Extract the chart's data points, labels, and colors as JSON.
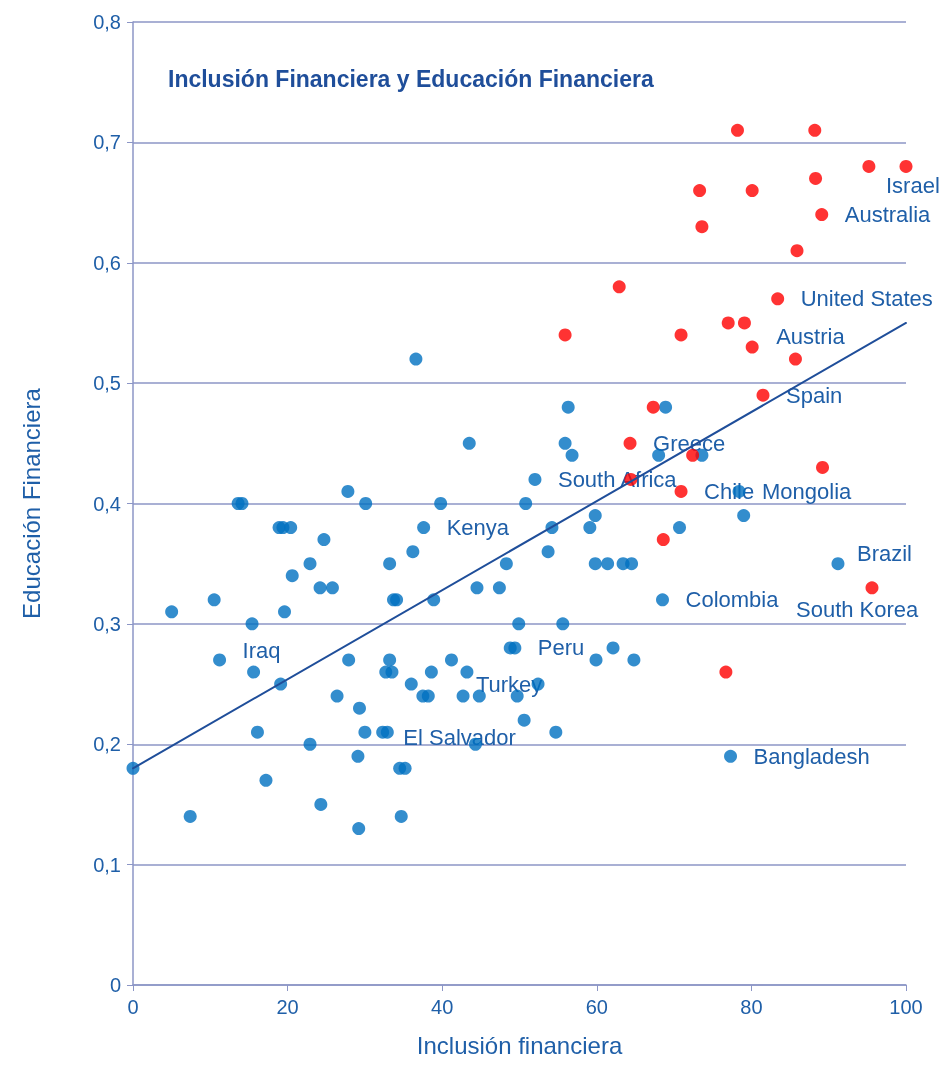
{
  "chart_data": {
    "type": "scatter",
    "title": "Inclusión Financiera y Educación Financiera",
    "xlabel": "Inclusión financiera",
    "ylabel": "Educación Financiera",
    "xlim": [
      0,
      100
    ],
    "xticks": [
      0,
      20,
      40,
      60,
      80,
      100
    ],
    "ylim": [
      0,
      0.8
    ],
    "yticks": [
      {
        "value": 0,
        "label": "0"
      },
      {
        "value": 0.1,
        "label": "0,1"
      },
      {
        "value": 0.2,
        "label": "0,2"
      },
      {
        "value": 0.3,
        "label": "0,3"
      },
      {
        "value": 0.4,
        "label": "0,4"
      },
      {
        "value": 0.5,
        "label": "0,5"
      },
      {
        "value": 0.6,
        "label": "0,6"
      },
      {
        "value": 0.7,
        "label": "0,7"
      },
      {
        "value": 0.8,
        "label": "0,8"
      }
    ],
    "grid": "y",
    "marker": "circle",
    "series": [
      {
        "color": "#0070c0",
        "x": [
          0,
          5.0,
          7.4,
          10.5,
          11.2,
          13.6,
          14.1,
          15.4,
          15.6,
          16.1,
          17.2,
          18.9,
          19.4,
          20.4,
          19.1,
          19.6,
          20.6,
          22.9,
          22.9,
          24.2,
          24.3,
          24.7,
          25.8,
          26.4,
          27.8,
          27.9,
          29.3,
          29.1,
          29.2,
          30.1,
          30.0,
          32.3,
          32.9,
          32.7,
          33.5,
          33.2,
          33.2,
          33.7,
          34.1,
          34.5,
          35.2,
          34.7,
          36.2,
          36.6,
          36.0,
          37.5,
          38.2,
          37.6,
          38.6,
          38.9,
          39.8,
          41.2,
          43.2,
          42.7,
          44.8,
          43.5,
          44.3,
          44.5,
          47.4,
          48.3,
          48.8,
          49.4,
          49.7,
          49.9,
          50.6,
          50.8,
          52.0,
          52.4,
          53.7,
          54.2,
          54.7,
          55.6,
          55.9,
          56.3,
          56.8,
          59.1,
          59.8,
          59.8,
          59.9,
          61.4,
          62.1,
          63.4,
          64.5,
          64.8,
          68.0,
          68.5,
          68.9,
          70.7,
          73.6,
          77.3,
          78.4,
          79.0,
          91.2
        ],
        "values": [
          0.18,
          0.31,
          0.14,
          0.32,
          0.27,
          0.4,
          0.4,
          0.3,
          0.26,
          0.21,
          0.17,
          0.38,
          0.38,
          0.38,
          0.25,
          0.31,
          0.34,
          0.35,
          0.2,
          0.33,
          0.15,
          0.37,
          0.33,
          0.24,
          0.41,
          0.27,
          0.23,
          0.19,
          0.13,
          0.4,
          0.21,
          0.21,
          0.21,
          0.26,
          0.26,
          0.27,
          0.35,
          0.32,
          0.32,
          0.18,
          0.18,
          0.14,
          0.36,
          0.52,
          0.25,
          0.24,
          0.24,
          0.38,
          0.26,
          0.32,
          0.4,
          0.27,
          0.26,
          0.24,
          0.24,
          0.45,
          0.2,
          0.33,
          0.33,
          0.35,
          0.28,
          0.28,
          0.24,
          0.3,
          0.22,
          0.4,
          0.42,
          0.25,
          0.36,
          0.38,
          0.21,
          0.3,
          0.45,
          0.48,
          0.44,
          0.38,
          0.39,
          0.35,
          0.27,
          0.35,
          0.28,
          0.35,
          0.35,
          0.27,
          0.44,
          0.32,
          0.48,
          0.38,
          0.44,
          0.19,
          0.41,
          0.39,
          0.35
        ]
      },
      {
        "color": "#ff0000",
        "x": [
          55.9,
          62.9,
          64.3,
          64.4,
          67.3,
          68.6,
          70.9,
          70.9,
          72.4,
          73.3,
          73.6,
          76.7,
          77.0,
          78.2,
          79.1,
          80.1,
          80.1,
          81.5,
          83.4,
          85.7,
          85.9,
          88.2,
          88.3,
          89.1,
          89.2,
          95.2,
          95.6,
          100.0
        ],
        "values": [
          0.54,
          0.58,
          0.45,
          0.42,
          0.48,
          0.37,
          0.54,
          0.41,
          0.44,
          0.66,
          0.63,
          0.26,
          0.55,
          0.71,
          0.55,
          0.66,
          0.53,
          0.49,
          0.57,
          0.52,
          0.61,
          0.71,
          0.67,
          0.64,
          0.43,
          0.68,
          0.33,
          0.68
        ]
      },
      {
        "type": "line",
        "color": "#1f4e9a",
        "marker": "none",
        "line_style": "solid",
        "x": [
          0,
          100
        ],
        "values": [
          0.18,
          0.55
        ]
      }
    ],
    "annotations": [
      {
        "text": "Israel",
        "x": 100.0,
        "y": 0.68
      },
      {
        "text": "Australia",
        "x": 89.1,
        "y": 0.64
      },
      {
        "text": "United States",
        "x": 83.4,
        "y": 0.57
      },
      {
        "text": "Austria",
        "x": 80.1,
        "y": 0.53
      },
      {
        "text": "Spain",
        "x": 81.5,
        "y": 0.49
      },
      {
        "text": "Greece",
        "x": 64.3,
        "y": 0.45
      },
      {
        "text": "South Africa",
        "x": 52.0,
        "y": 0.42
      },
      {
        "text": "Chile",
        "x": 70.9,
        "y": 0.41
      },
      {
        "text": "Mongolia",
        "x": 78.4,
        "y": 0.41
      },
      {
        "text": "Kenya",
        "x": 37.6,
        "y": 0.38
      },
      {
        "text": "Brazil",
        "x": 91.2,
        "y": 0.35
      },
      {
        "text": "Colombia",
        "x": 68.5,
        "y": 0.32
      },
      {
        "text": "South Korea",
        "x": 95.6,
        "y": 0.33
      },
      {
        "text": "Iraq",
        "x": 11.2,
        "y": 0.27
      },
      {
        "text": "Peru",
        "x": 49.4,
        "y": 0.28
      },
      {
        "text": "Turkey",
        "x": 43.2,
        "y": 0.26
      },
      {
        "text": "El Salvador",
        "x": 32.9,
        "y": 0.21
      },
      {
        "text": "Bangladesh",
        "x": 77.3,
        "y": 0.19
      }
    ]
  }
}
